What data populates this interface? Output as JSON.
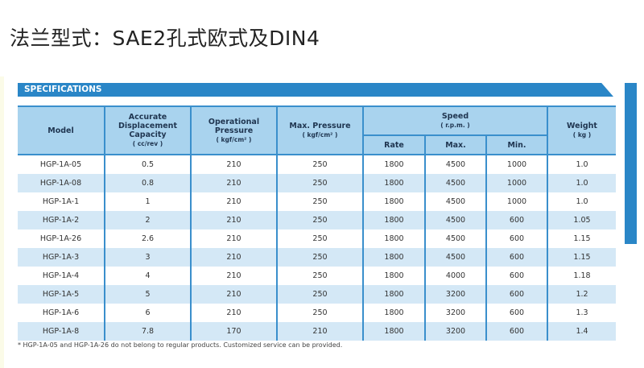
{
  "title": "法兰型式：SAE2孔式欧式及DIN4",
  "section_label": "SPECIFICATIONS",
  "colors": {
    "accent": "#2a86c7",
    "header_bg": "#a9d3ee",
    "row_alt": "#d4e8f6"
  },
  "headers": {
    "model": "Model",
    "displacement": "Accurate Displacement Capacity",
    "displacement_unit": "( cc/rev )",
    "op_pressure": "Operational Pressure",
    "op_pressure_unit": "( kgf/cm² )",
    "max_pressure": "Max. Pressure",
    "max_pressure_unit": "( kgf/cm² )",
    "speed": "Speed",
    "speed_unit": "( r.p.m. )",
    "rate": "Rate",
    "max": "Max.",
    "min": "Min.",
    "weight": "Weight",
    "weight_unit": "( kg )"
  },
  "rows": [
    [
      "HGP-1A-05",
      "0.5",
      "210",
      "250",
      "1800",
      "4500",
      "1000",
      "1.0"
    ],
    [
      "HGP-1A-08",
      "0.8",
      "210",
      "250",
      "1800",
      "4500",
      "1000",
      "1.0"
    ],
    [
      "HGP-1A-1",
      "1",
      "210",
      "250",
      "1800",
      "4500",
      "1000",
      "1.0"
    ],
    [
      "HGP-1A-2",
      "2",
      "210",
      "250",
      "1800",
      "4500",
      "600",
      "1.05"
    ],
    [
      "HGP-1A-26",
      "2.6",
      "210",
      "250",
      "1800",
      "4500",
      "600",
      "1.15"
    ],
    [
      "HGP-1A-3",
      "3",
      "210",
      "250",
      "1800",
      "4500",
      "600",
      "1.15"
    ],
    [
      "HGP-1A-4",
      "4",
      "210",
      "250",
      "1800",
      "4000",
      "600",
      "1.18"
    ],
    [
      "HGP-1A-5",
      "5",
      "210",
      "250",
      "1800",
      "3200",
      "600",
      "1.2"
    ],
    [
      "HGP-1A-6",
      "6",
      "210",
      "250",
      "1800",
      "3200",
      "600",
      "1.3"
    ],
    [
      "HGP-1A-8",
      "7.8",
      "170",
      "210",
      "1800",
      "3200",
      "600",
      "1.4"
    ]
  ],
  "note": "* HGP-1A-05 and HGP-1A-26 do not belong to regular products. Customized service can be provided."
}
